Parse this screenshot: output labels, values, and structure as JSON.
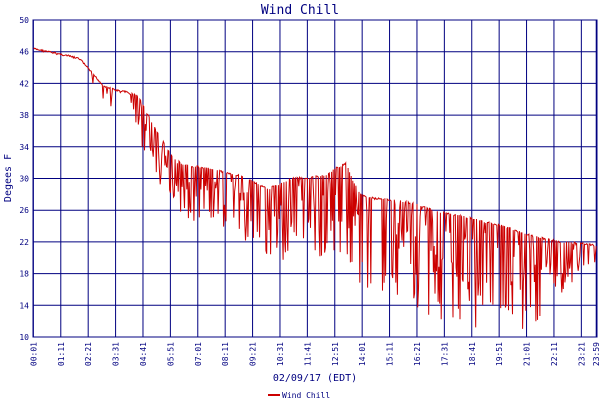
{
  "chart_data": {
    "type": "line",
    "title": "Wind Chill",
    "xlabel": "02/09/17 (EDT)",
    "ylabel": "Degees F",
    "ylim": [
      10,
      50
    ],
    "y_ticks": [
      "10",
      "14",
      "18",
      "22",
      "26",
      "30",
      "34",
      "38",
      "42",
      "46",
      "50"
    ],
    "x_ticks": [
      "00:01",
      "01:11",
      "02:21",
      "03:31",
      "04:41",
      "05:51",
      "07:01",
      "08:11",
      "09:21",
      "10:31",
      "11:41",
      "12:51",
      "14:01",
      "15:11",
      "16:21",
      "17:31",
      "18:41",
      "19:51",
      "21:01",
      "22:11",
      "23:21",
      "23:59"
    ],
    "x_minutes": [
      1,
      71,
      141,
      211,
      281,
      351,
      421,
      491,
      561,
      631,
      701,
      771,
      841,
      911,
      981,
      1051,
      1121,
      1191,
      1261,
      1331,
      1401,
      1439
    ],
    "grid": true,
    "legend": "bottom-center",
    "series": [
      {
        "name": "Wind Chill",
        "color": "#cc0000",
        "upper_envelope": {
          "time": [
            "00:01",
            "00:30",
            "01:00",
            "01:30",
            "02:00",
            "02:30",
            "03:00",
            "03:30",
            "04:00",
            "04:30",
            "05:00",
            "05:30",
            "06:00",
            "06:30",
            "07:00",
            "07:30",
            "08:00",
            "08:30",
            "09:00",
            "09:30",
            "10:00",
            "10:30",
            "11:00",
            "11:30",
            "12:00",
            "12:30",
            "13:00",
            "13:20",
            "13:40",
            "14:00",
            "14:30",
            "15:00",
            "15:30",
            "16:00",
            "16:30",
            "17:00",
            "17:30",
            "18:00",
            "18:30",
            "19:00",
            "19:30",
            "20:00",
            "20:30",
            "21:00",
            "21:30",
            "22:00",
            "22:30",
            "23:00",
            "23:30",
            "23:59"
          ],
          "values": [
            46.5,
            46.2,
            45.9,
            45.6,
            45.2,
            43.5,
            41.8,
            41.3,
            41.0,
            40.5,
            37.5,
            35.0,
            32.5,
            31.8,
            31.6,
            31.4,
            31.0,
            30.7,
            30.3,
            29.5,
            28.8,
            29.4,
            30.1,
            30.2,
            30.3,
            30.6,
            31.6,
            32.0,
            29.5,
            28.0,
            27.6,
            27.5,
            27.3,
            27.1,
            26.7,
            26.2,
            25.8,
            25.5,
            25.2,
            24.8,
            24.5,
            24.1,
            23.6,
            23.1,
            22.7,
            22.4,
            22.1,
            22.0,
            21.9,
            21.6
          ]
        },
        "lower_envelope": {
          "time": [
            "00:01",
            "00:30",
            "01:00",
            "01:30",
            "02:00",
            "02:30",
            "03:00",
            "03:30",
            "04:00",
            "04:30",
            "05:00",
            "05:30",
            "06:00",
            "06:30",
            "07:00",
            "07:30",
            "08:00",
            "08:30",
            "09:00",
            "09:30",
            "10:00",
            "10:30",
            "11:00",
            "11:30",
            "12:00",
            "12:30",
            "13:00",
            "13:20",
            "13:40",
            "14:00",
            "14:30",
            "15:00",
            "15:30",
            "16:00",
            "16:30",
            "17:00",
            "17:30",
            "18:00",
            "18:30",
            "19:00",
            "19:30",
            "20:00",
            "20:30",
            "21:00",
            "21:30",
            "22:00",
            "22:30",
            "23:00",
            "23:30",
            "23:59"
          ],
          "values": [
            46.0,
            45.8,
            45.5,
            45.3,
            44.5,
            41.5,
            40.0,
            38.5,
            37.5,
            34.5,
            31.5,
            28.5,
            26.5,
            25.0,
            24.5,
            24.0,
            23.5,
            23.0,
            22.0,
            20.0,
            19.0,
            19.5,
            20.0,
            20.5,
            20.0,
            19.5,
            19.0,
            20.0,
            17.0,
            16.0,
            14.0,
            13.5,
            14.5,
            13.0,
            13.0,
            12.5,
            12.0,
            12.5,
            11.5,
            11.0,
            11.0,
            11.5,
            11.0,
            11.0,
            11.5,
            14.0,
            14.5,
            17.0,
            17.5,
            17.5
          ]
        }
      }
    ]
  }
}
